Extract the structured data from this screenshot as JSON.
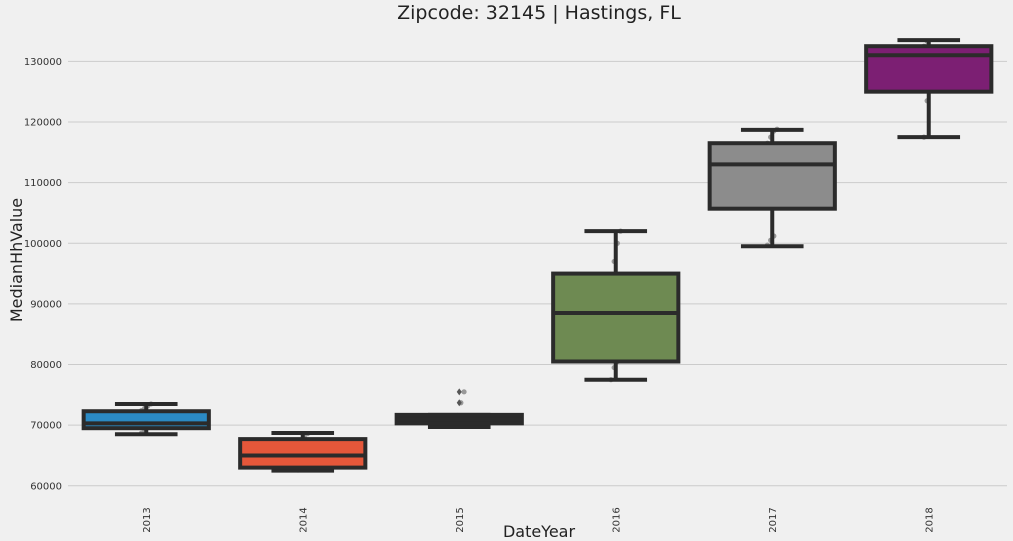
{
  "chart_data": {
    "type": "box",
    "title": "Zipcode: 32145 | Hastings, FL",
    "xlabel": "DateYear",
    "ylabel": "MedianHhValue",
    "ylim": [
      57000,
      135500
    ],
    "yticks": [
      60000,
      70000,
      80000,
      90000,
      100000,
      110000,
      120000,
      130000
    ],
    "grid": true,
    "categories": [
      "2013",
      "2014",
      "2015",
      "2016",
      "2017",
      "2018"
    ],
    "colors": [
      "#2b8ac4",
      "#e5573a",
      "#2b2b2b",
      "#6e8a52",
      "#8c8c8c",
      "#7c1f73"
    ],
    "boxes": [
      {
        "whislo": 68500,
        "q1": 69500,
        "med": 70300,
        "q3": 72300,
        "whishi": 73500
      },
      {
        "whislo": 62500,
        "q1": 63000,
        "med": 65000,
        "q3": 67700,
        "whishi": 68700
      },
      {
        "whislo": 69700,
        "q1": 70300,
        "med": 71000,
        "q3": 71700,
        "whishi": 71700
      },
      {
        "whislo": 77500,
        "q1": 80500,
        "med": 88500,
        "q3": 95000,
        "whishi": 102000
      },
      {
        "whislo": 99500,
        "q1": 105700,
        "med": 113000,
        "q3": 116500,
        "whishi": 118700
      },
      {
        "whislo": 117500,
        "q1": 125000,
        "med": 131000,
        "q3": 132500,
        "whishi": 133500
      }
    ],
    "outliers": [
      [],
      [],
      [
        73700,
        75500
      ],
      [],
      [],
      []
    ],
    "points": [
      [
        68700,
        69200,
        69600,
        70000,
        70500,
        71000,
        71500,
        72000,
        72400,
        72800,
        73200,
        73500
      ],
      [
        62600,
        62900,
        63200,
        63600,
        64000,
        64500,
        65000,
        65500,
        66500,
        67500,
        68000,
        68600
      ],
      [
        69800,
        70000,
        70200,
        70400,
        70600,
        70800,
        71000,
        71200,
        71400,
        71600,
        73700,
        75500
      ],
      [
        77500,
        79500,
        80500,
        81500,
        83500,
        87000,
        90000,
        92000,
        94500,
        97000,
        100000,
        102000
      ],
      [
        99700,
        100500,
        101200,
        107000,
        110000,
        113000,
        114500,
        115500,
        116500,
        117500,
        118500,
        118800
      ],
      [
        117500,
        123500,
        129500,
        132000,
        132500,
        133300
      ]
    ]
  }
}
